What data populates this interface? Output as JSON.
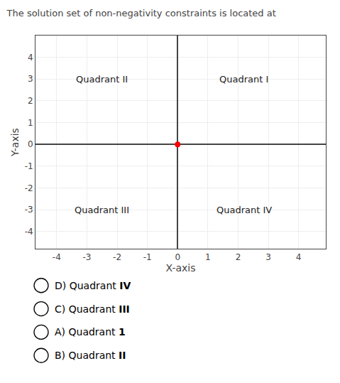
{
  "chart_data": {
    "type": "scatter",
    "title": "The solution set of non-negativity constraints is located at",
    "xlabel": "X-axis",
    "ylabel": "Y-axis",
    "x": [
      0
    ],
    "values": [
      0
    ],
    "color": "red",
    "xlim": [
      -4.7,
      4.9
    ],
    "ylim": [
      -4.8,
      5.0
    ],
    "xticks": [
      -4,
      -3,
      -2,
      -1,
      0,
      1,
      2,
      3,
      4
    ],
    "yticks": [
      -4,
      -3,
      -2,
      -1,
      0,
      1,
      2,
      3,
      4
    ],
    "grid": true,
    "annotations": [
      {
        "text": "Quadrant I",
        "x": 2.2,
        "y": 3.0
      },
      {
        "text": "Quadrant II",
        "x": -2.5,
        "y": 3.0
      },
      {
        "text": "Quadrant III",
        "x": -2.5,
        "y": -3.0
      },
      {
        "text": "Quadrant IV",
        "x": 2.2,
        "y": -3.0
      }
    ],
    "choices": [
      {
        "prefix": "D) Quadrant ",
        "bold": "IV"
      },
      {
        "prefix": "C) Quadrant ",
        "bold": "III"
      },
      {
        "prefix": "A) Quadrant ",
        "bold": "1"
      },
      {
        "prefix": "B) Quadrant ",
        "bold": "II"
      }
    ]
  }
}
